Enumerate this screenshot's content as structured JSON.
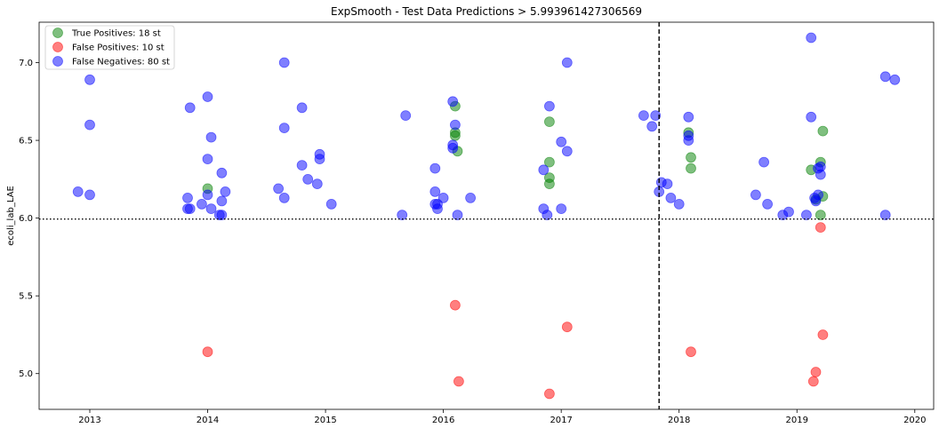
{
  "chart_data": {
    "type": "scatter",
    "title": "ExpSmooth - Test Data Predictions > 5.993961427306569",
    "xlabel": "",
    "ylabel": "ecoli_lab_LAE",
    "xlim": [
      2012.57,
      2020.16
    ],
    "ylim": [
      4.77,
      7.26
    ],
    "x_ticks": [
      2013,
      2014,
      2015,
      2016,
      2017,
      2018,
      2019,
      2020
    ],
    "y_ticks": [
      5.0,
      5.5,
      6.0,
      6.5,
      7.0
    ],
    "threshold": 5.993961427306569,
    "split_x": 2017.83,
    "grid": false,
    "legend_position": "upper-left",
    "series": [
      {
        "name": "True Positives: 18 st",
        "color": "#008000",
        "points": [
          [
            2014.0,
            6.19
          ],
          [
            2016.1,
            6.72
          ],
          [
            2016.1,
            6.55
          ],
          [
            2016.1,
            6.53
          ],
          [
            2016.12,
            6.43
          ],
          [
            2016.9,
            6.62
          ],
          [
            2016.9,
            6.36
          ],
          [
            2016.9,
            6.26
          ],
          [
            2016.9,
            6.22
          ],
          [
            2018.08,
            6.55
          ],
          [
            2018.1,
            6.39
          ],
          [
            2018.1,
            6.32
          ],
          [
            2019.22,
            6.56
          ],
          [
            2019.2,
            6.36
          ],
          [
            2019.12,
            6.31
          ],
          [
            2019.22,
            6.14
          ],
          [
            2019.16,
            6.12
          ],
          [
            2019.2,
            6.02
          ]
        ]
      },
      {
        "name": "False Positives: 10 st",
        "color": "#ff0000",
        "points": [
          [
            2014.0,
            5.14
          ],
          [
            2016.1,
            5.44
          ],
          [
            2016.13,
            4.95
          ],
          [
            2016.9,
            4.87
          ],
          [
            2017.05,
            5.3
          ],
          [
            2018.1,
            5.14
          ],
          [
            2019.2,
            5.94
          ],
          [
            2019.22,
            5.25
          ],
          [
            2019.16,
            5.01
          ],
          [
            2019.14,
            4.95
          ]
        ]
      },
      {
        "name": "False Negatives: 80 st",
        "color": "#0000ff",
        "points": [
          [
            2012.9,
            6.17
          ],
          [
            2013.0,
            6.89
          ],
          [
            2013.0,
            6.6
          ],
          [
            2013.0,
            6.15
          ],
          [
            2013.85,
            6.71
          ],
          [
            2013.83,
            6.13
          ],
          [
            2013.83,
            6.06
          ],
          [
            2013.85,
            6.06
          ],
          [
            2013.95,
            6.09
          ],
          [
            2014.0,
            6.78
          ],
          [
            2014.0,
            6.38
          ],
          [
            2014.0,
            6.15
          ],
          [
            2014.03,
            6.52
          ],
          [
            2014.03,
            6.06
          ],
          [
            2014.12,
            6.29
          ],
          [
            2014.12,
            6.11
          ],
          [
            2014.12,
            6.02
          ],
          [
            2014.15,
            6.17
          ],
          [
            2014.1,
            6.02
          ],
          [
            2014.65,
            7.0
          ],
          [
            2014.65,
            6.58
          ],
          [
            2014.6,
            6.19
          ],
          [
            2014.65,
            6.13
          ],
          [
            2014.8,
            6.71
          ],
          [
            2014.8,
            6.34
          ],
          [
            2014.85,
            6.25
          ],
          [
            2014.95,
            6.41
          ],
          [
            2014.95,
            6.38
          ],
          [
            2014.93,
            6.22
          ],
          [
            2015.05,
            6.09
          ],
          [
            2015.68,
            6.66
          ],
          [
            2015.65,
            6.02
          ],
          [
            2015.93,
            6.32
          ],
          [
            2015.93,
            6.17
          ],
          [
            2015.93,
            6.09
          ],
          [
            2015.95,
            6.09
          ],
          [
            2015.95,
            6.06
          ],
          [
            2016.0,
            6.13
          ],
          [
            2016.08,
            6.75
          ],
          [
            2016.1,
            6.6
          ],
          [
            2016.08,
            6.47
          ],
          [
            2016.08,
            6.45
          ],
          [
            2016.12,
            6.02
          ],
          [
            2016.23,
            6.13
          ],
          [
            2016.85,
            6.06
          ],
          [
            2016.85,
            6.31
          ],
          [
            2016.88,
            6.02
          ],
          [
            2016.9,
            6.72
          ],
          [
            2017.0,
            6.49
          ],
          [
            2017.05,
            7.0
          ],
          [
            2017.05,
            6.43
          ],
          [
            2017.0,
            6.06
          ],
          [
            2017.7,
            6.66
          ],
          [
            2017.77,
            6.59
          ],
          [
            2017.8,
            6.66
          ],
          [
            2017.83,
            6.17
          ],
          [
            2017.85,
            6.23
          ],
          [
            2017.9,
            6.22
          ],
          [
            2017.93,
            6.13
          ],
          [
            2018.0,
            6.09
          ],
          [
            2018.08,
            6.65
          ],
          [
            2018.08,
            6.53
          ],
          [
            2018.08,
            6.5
          ],
          [
            2018.65,
            6.15
          ],
          [
            2018.72,
            6.36
          ],
          [
            2018.75,
            6.09
          ],
          [
            2018.88,
            6.02
          ],
          [
            2018.93,
            6.04
          ],
          [
            2019.08,
            6.02
          ],
          [
            2019.12,
            7.16
          ],
          [
            2019.12,
            6.65
          ],
          [
            2019.2,
            6.33
          ],
          [
            2019.2,
            6.28
          ],
          [
            2019.18,
            6.32
          ],
          [
            2019.15,
            6.13
          ],
          [
            2019.16,
            6.11
          ],
          [
            2019.18,
            6.15
          ],
          [
            2019.75,
            6.91
          ],
          [
            2019.83,
            6.89
          ],
          [
            2019.75,
            6.02
          ]
        ]
      }
    ]
  }
}
